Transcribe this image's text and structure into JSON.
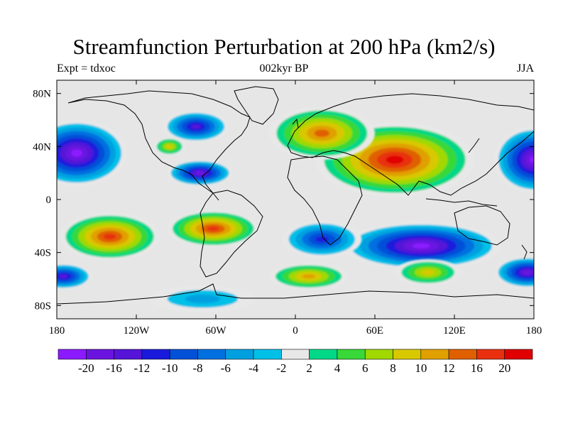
{
  "header": {
    "title": "Streamfunction Perturbation at 200 hPa (km2/s)",
    "left": "Expt = tdxoc",
    "center": "002kyr BP",
    "right": "JJA"
  },
  "map": {
    "lon_range": [
      -180,
      180
    ],
    "lat_range": [
      -90,
      90
    ],
    "projection": "cylindrical-equidistant",
    "background": "#e6e6e6",
    "x_ticks": [
      {
        "value": -180,
        "label": "180"
      },
      {
        "value": -120,
        "label": "120W"
      },
      {
        "value": -60,
        "label": "60W"
      },
      {
        "value": 0,
        "label": "0"
      },
      {
        "value": 60,
        "label": "60E"
      },
      {
        "value": 120,
        "label": "120E"
      },
      {
        "value": 180,
        "label": "180"
      }
    ],
    "y_ticks": [
      {
        "value": 80,
        "label": "80N"
      },
      {
        "value": 40,
        "label": "40N"
      },
      {
        "value": 0,
        "label": "0"
      },
      {
        "value": -40,
        "label": "40S"
      },
      {
        "value": -80,
        "label": "80S"
      }
    ],
    "features": [
      {
        "name": "central-asia-high",
        "lon": 75,
        "lat": 30,
        "rx": 60,
        "ry": 28,
        "value": 22
      },
      {
        "name": "europe-high",
        "lon": 20,
        "lat": 50,
        "rx": 40,
        "ry": 20,
        "value": 14
      },
      {
        "name": "south-pacific-high",
        "lon": -140,
        "lat": -28,
        "rx": 38,
        "ry": 18,
        "value": 16
      },
      {
        "name": "south-america-high",
        "lon": -62,
        "lat": -22,
        "rx": 35,
        "ry": 14,
        "value": 16
      },
      {
        "name": "north-pacific-low",
        "lon": -165,
        "lat": 35,
        "rx": 38,
        "ry": 25,
        "value": -20
      },
      {
        "name": "dateline-north-low",
        "lon": 180,
        "lat": 30,
        "rx": 30,
        "ry": 25,
        "value": -20
      },
      {
        "name": "hudson-low",
        "lon": -75,
        "lat": 55,
        "rx": 25,
        "ry": 12,
        "value": -14
      },
      {
        "name": "caribbean-low",
        "lon": -72,
        "lat": 20,
        "rx": 25,
        "ry": 10,
        "value": -16
      },
      {
        "name": "indian-ocean-low",
        "lon": 95,
        "lat": -35,
        "rx": 60,
        "ry": 18,
        "value": -20
      },
      {
        "name": "south-atlantic-low",
        "lon": 20,
        "lat": -30,
        "rx": 30,
        "ry": 14,
        "value": -10
      },
      {
        "name": "south-dateline-low",
        "lon": 175,
        "lat": -55,
        "rx": 25,
        "ry": 12,
        "value": -18
      },
      {
        "name": "far-west-south-low",
        "lon": -175,
        "lat": -58,
        "rx": 22,
        "ry": 10,
        "value": -12
      },
      {
        "name": "atlantic-south-high",
        "lon": 10,
        "lat": -58,
        "rx": 30,
        "ry": 10,
        "value": 10
      },
      {
        "name": "indian-south-high",
        "lon": 100,
        "lat": -55,
        "rx": 25,
        "ry": 10,
        "value": 8
      },
      {
        "name": "antarctic-peninsula-low",
        "lon": -70,
        "lat": -75,
        "rx": 40,
        "ry": 10,
        "value": -4
      },
      {
        "name": "west-atlantic-high",
        "lon": -95,
        "lat": 40,
        "rx": 12,
        "ry": 7,
        "value": 8
      }
    ]
  },
  "colorbar": {
    "colors": [
      "#8c1aff",
      "#6b14e0",
      "#5514d8",
      "#1a1adc",
      "#0050d8",
      "#0070e0",
      "#00a0e0",
      "#00c0e8",
      "#e8e8e8",
      "#00d888",
      "#38d838",
      "#a0d800",
      "#d8c800",
      "#e0a000",
      "#e06000",
      "#e83010",
      "#e00000"
    ],
    "labels": [
      "-20",
      "-16",
      "-12",
      "-10",
      "-8",
      "-6",
      "-4",
      "-2",
      "2",
      "4",
      "6",
      "8",
      "10",
      "12",
      "16",
      "20"
    ]
  }
}
